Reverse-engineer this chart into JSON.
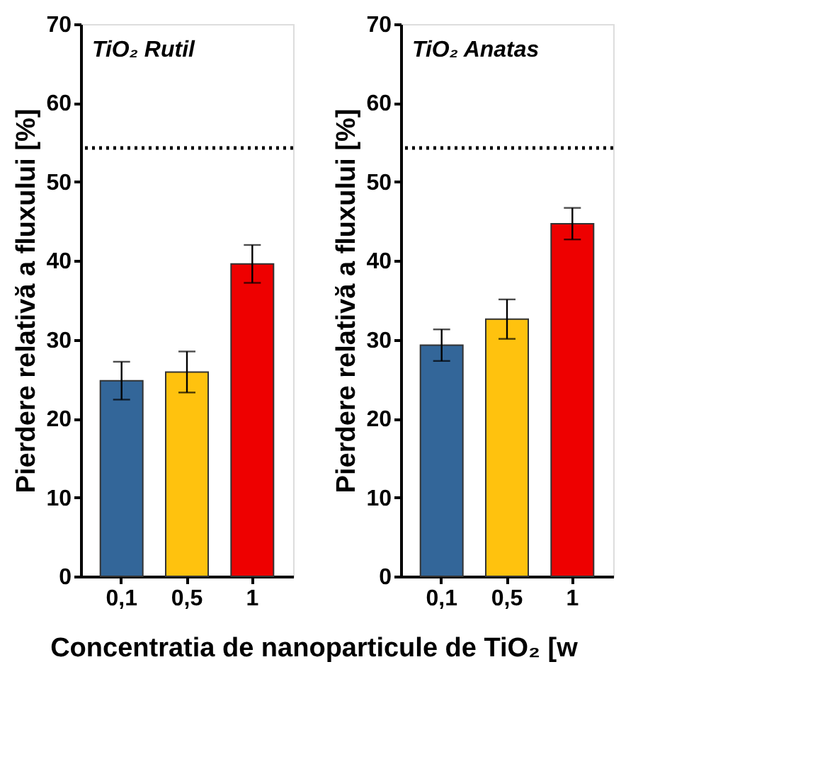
{
  "chart_data": [
    {
      "type": "bar",
      "title": "TiO₂ Rutil",
      "ylabel": "Pierdere relativă a fluxului [%]",
      "xlabel": "Concentratia de nanoparticule de TiO₂ [w",
      "categories": [
        "0,1",
        "0,5",
        "1"
      ],
      "values": [
        24.8,
        25.9,
        39.6
      ],
      "errors": [
        2.4,
        2.6,
        2.4
      ],
      "colors": [
        "#336699",
        "#ffc20e",
        "#ee0000"
      ],
      "ylim": [
        0,
        70
      ],
      "yticks": [
        0,
        10,
        20,
        30,
        40,
        50,
        60,
        70
      ],
      "grid": false,
      "ref_lines": [
        {
          "axis": "y",
          "value": 54.3,
          "color": "#000000",
          "line_style": "dotted"
        }
      ]
    },
    {
      "type": "bar",
      "title": "TiO₂ Anatas",
      "ylabel": "Pierdere relativă a fluxului [%]",
      "categories": [
        "0,1",
        "0,5",
        "1"
      ],
      "values": [
        29.3,
        32.6,
        44.7
      ],
      "errors": [
        2.0,
        2.5,
        2.0
      ],
      "colors": [
        "#336699",
        "#ffc20e",
        "#ee0000"
      ],
      "ylim": [
        0,
        70
      ],
      "yticks": [
        0,
        10,
        20,
        30,
        40,
        50,
        60,
        70
      ],
      "grid": false,
      "ref_lines": [
        {
          "axis": "y",
          "value": 54.3,
          "color": "#000000",
          "line_style": "dotted"
        }
      ]
    }
  ]
}
